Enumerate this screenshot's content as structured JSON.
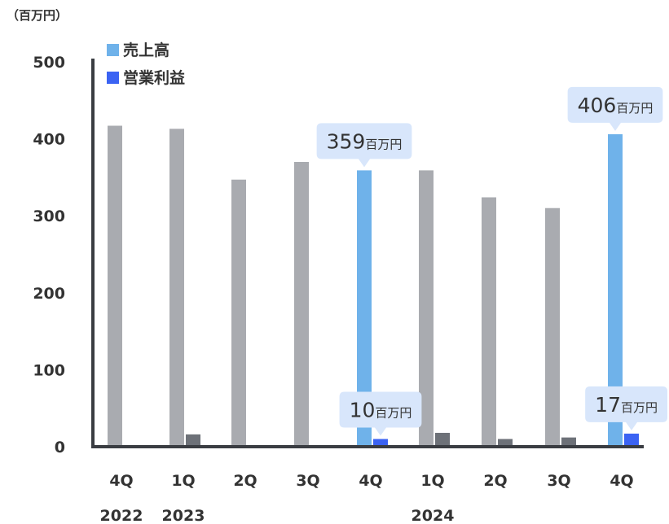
{
  "chart_data": {
    "type": "bar",
    "unit_label": "（百万円）",
    "ylim": [
      0,
      500
    ],
    "yticks": [
      0,
      100,
      200,
      300,
      400,
      500
    ],
    "grid": false,
    "legend": {
      "placement": "top-left",
      "items": [
        {
          "name": "売上高",
          "color": "#6fb2ea"
        },
        {
          "name": "営業利益",
          "color": "#3b63f3"
        }
      ]
    },
    "categories": [
      "4Q",
      "1Q",
      "2Q",
      "3Q",
      "4Q",
      "1Q",
      "2Q",
      "3Q",
      "4Q"
    ],
    "years": [
      {
        "label": "2022",
        "category_index": 0
      },
      {
        "label": "2023",
        "category_index": 1
      },
      {
        "label": "2024",
        "category_index": 5
      }
    ],
    "series": [
      {
        "name": "売上高",
        "values": [
          417,
          413,
          347,
          370,
          359,
          359,
          324,
          310,
          406
        ],
        "highlight": [
          false,
          false,
          false,
          false,
          true,
          false,
          false,
          false,
          true
        ]
      },
      {
        "name": "営業利益",
        "values": [
          0,
          16,
          2,
          0,
          10,
          18,
          10,
          12,
          17
        ],
        "highlight": [
          false,
          false,
          false,
          false,
          true,
          false,
          false,
          false,
          true
        ]
      }
    ],
    "annotations": [
      {
        "series": 0,
        "category_index": 4,
        "value": "359",
        "unit": "百万円"
      },
      {
        "series": 0,
        "category_index": 8,
        "value": "406",
        "unit": "百万円"
      },
      {
        "series": 1,
        "category_index": 4,
        "value": "10",
        "unit": "百万円"
      },
      {
        "series": 1,
        "category_index": 8,
        "value": "17",
        "unit": "百万円"
      }
    ]
  },
  "colors": {
    "sales_muted": "#a9abb0",
    "profit_muted": "#6d7178",
    "sales_highlight": "#6fb2ea",
    "profit_highlight": "#3b63f3",
    "axis": "#3a3d42",
    "callout_bg": "#d8e6fb",
    "text": "#333333"
  }
}
